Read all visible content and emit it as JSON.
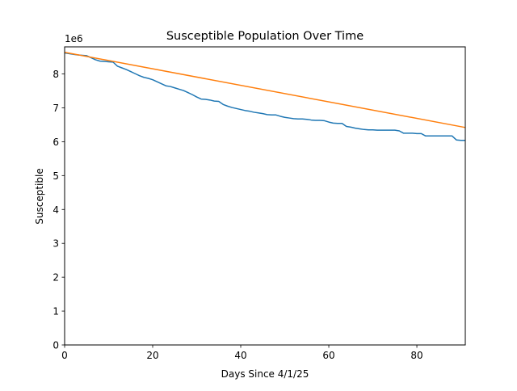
{
  "chart_data": {
    "type": "line",
    "title": "Susceptible Population Over Time",
    "xlabel": "Days Since 4/1/25",
    "ylabel": "Susceptible",
    "y_offset_text": "1e6",
    "xlim": [
      0,
      91
    ],
    "ylim": [
      0,
      8800000
    ],
    "x_ticks": [
      0,
      20,
      40,
      60,
      80
    ],
    "x_tick_labels": [
      "0",
      "20",
      "40",
      "60",
      "80"
    ],
    "y_ticks": [
      0,
      1000000,
      2000000,
      3000000,
      4000000,
      5000000,
      6000000,
      7000000,
      8000000
    ],
    "y_tick_labels": [
      "0",
      "1",
      "2",
      "3",
      "4",
      "5",
      "6",
      "7",
      "8"
    ],
    "grid": false,
    "series": [
      {
        "color": "#1f77b4",
        "x": [
          0,
          1,
          2,
          3,
          4,
          5,
          6,
          7,
          8,
          9,
          10,
          11,
          12,
          13,
          14,
          15,
          16,
          17,
          18,
          19,
          20,
          21,
          22,
          23,
          24,
          25,
          26,
          27,
          28,
          29,
          30,
          31,
          32,
          33,
          34,
          35,
          36,
          37,
          38,
          39,
          40,
          41,
          42,
          43,
          44,
          45,
          46,
          47,
          48,
          49,
          50,
          51,
          52,
          53,
          54,
          55,
          56,
          57,
          58,
          59,
          60,
          61,
          62,
          63,
          64,
          65,
          66,
          67,
          68,
          69,
          70,
          71,
          72,
          73,
          74,
          75,
          76,
          77,
          78,
          79,
          80,
          81,
          82,
          83,
          84,
          85,
          86,
          87,
          88,
          89,
          90,
          91
        ],
        "y": [
          8620000,
          8600000,
          8580000,
          8560000,
          8550000,
          8540000,
          8480000,
          8420000,
          8380000,
          8370000,
          8360000,
          8350000,
          8230000,
          8180000,
          8130000,
          8070000,
          8010000,
          7950000,
          7900000,
          7870000,
          7830000,
          7770000,
          7710000,
          7650000,
          7630000,
          7590000,
          7550000,
          7510000,
          7450000,
          7390000,
          7320000,
          7260000,
          7250000,
          7230000,
          7200000,
          7190000,
          7100000,
          7050000,
          7010000,
          6980000,
          6950000,
          6920000,
          6900000,
          6870000,
          6850000,
          6830000,
          6800000,
          6790000,
          6790000,
          6750000,
          6720000,
          6700000,
          6680000,
          6670000,
          6670000,
          6660000,
          6640000,
          6630000,
          6630000,
          6620000,
          6580000,
          6550000,
          6540000,
          6540000,
          6450000,
          6430000,
          6400000,
          6380000,
          6360000,
          6350000,
          6350000,
          6340000,
          6340000,
          6340000,
          6340000,
          6340000,
          6320000,
          6250000,
          6250000,
          6250000,
          6240000,
          6240000,
          6170000,
          6170000,
          6170000,
          6170000,
          6170000,
          6170000,
          6170000,
          6050000,
          6040000,
          6040000
        ]
      },
      {
        "color": "#ff7f0e",
        "x": [
          0,
          91
        ],
        "y": [
          8640000,
          6420000
        ]
      }
    ]
  }
}
